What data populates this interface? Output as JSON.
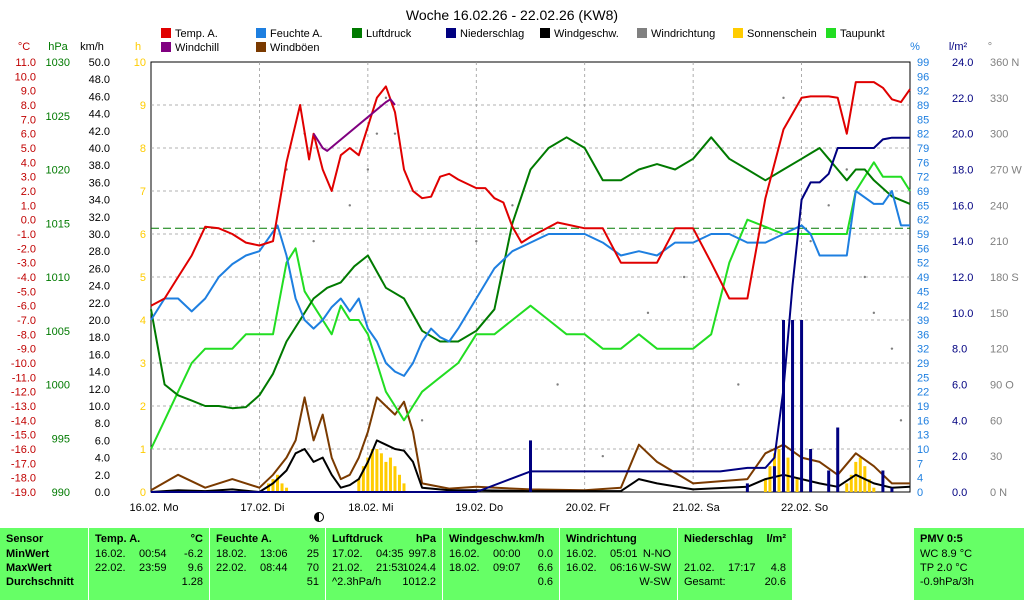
{
  "title": "Woche 16.02.26 - 22.02.26 (KW8)",
  "legend": [
    {
      "label": "Temp. A.",
      "color": "#e00000"
    },
    {
      "label": "Feuchte A.",
      "color": "#1e7fe0"
    },
    {
      "label": "Luftdruck",
      "color": "#007a00"
    },
    {
      "label": "Niederschlag",
      "color": "#000080"
    },
    {
      "label": "Windgeschw.",
      "color": "#000000"
    },
    {
      "label": "Windrichtung",
      "color": "#808080"
    },
    {
      "label": "Sonnenschein",
      "color": "#ffcc00"
    },
    {
      "label": "Taupunkt",
      "color": "#22dd22"
    },
    {
      "label": "Windchill",
      "color": "#800080"
    },
    {
      "label": "Windböen",
      "color": "#7a3a00"
    }
  ],
  "axes": {
    "temp": {
      "unit": "°C",
      "color": "#c00000",
      "ticks": [
        "11.0",
        "10.0",
        "9.0",
        "8.0",
        "7.0",
        "6.0",
        "5.0",
        "4.0",
        "3.0",
        "2.0",
        "1.0",
        "0.0",
        "-1.0",
        "-2.0",
        "-3.0",
        "-4.0",
        "-5.0",
        "-6.0",
        "-7.0",
        "-8.0",
        "-9.0",
        "-10.0",
        "-11.0",
        "-12.0",
        "-13.0",
        "-14.0",
        "-15.0",
        "-16.0",
        "-17.0",
        "-18.0",
        "-19.0"
      ]
    },
    "pressure": {
      "unit": "hPa",
      "color": "#007a00",
      "ticks": [
        "1030",
        "1025",
        "1020",
        "1015",
        "1010",
        "1005",
        "1000",
        "995",
        "990"
      ]
    },
    "wind": {
      "unit": "km/h",
      "color": "#000000",
      "ticks": [
        "50.0",
        "48.0",
        "46.0",
        "44.0",
        "42.0",
        "40.0",
        "38.0",
        "36.0",
        "34.0",
        "32.0",
        "30.0",
        "28.0",
        "26.0",
        "24.0",
        "22.0",
        "20.0",
        "18.0",
        "16.0",
        "14.0",
        "12.0",
        "10.0",
        "8.0",
        "6.0",
        "4.0",
        "2.0",
        "0.0"
      ]
    },
    "sun": {
      "unit": "h",
      "color": "#ffcc00",
      "ticks": [
        "10",
        "9",
        "8",
        "7",
        "6",
        "5",
        "4",
        "3",
        "2",
        "1",
        "0"
      ]
    },
    "humidity": {
      "unit": "%",
      "color": "#1e7fe0",
      "ticks": [
        "99",
        "96",
        "92",
        "89",
        "85",
        "82",
        "79",
        "76",
        "72",
        "69",
        "65",
        "62",
        "59",
        "56",
        "52",
        "49",
        "45",
        "42",
        "39",
        "36",
        "32",
        "29",
        "25",
        "22",
        "19",
        "16",
        "13",
        "10",
        "7",
        "4",
        "0"
      ]
    },
    "rain": {
      "unit": "l/m²",
      "color": "#000080",
      "ticks": [
        "24.0",
        "22.0",
        "20.0",
        "18.0",
        "16.0",
        "14.0",
        "12.0",
        "10.0",
        "8.0",
        "6.0",
        "4.0",
        "2.0",
        "0.0"
      ]
    },
    "direction": {
      "unit": "°",
      "color": "#808080",
      "ticks": [
        "360 N",
        "330",
        "300",
        "270 W",
        "240",
        "210",
        "180 S",
        "150",
        "120",
        "90 O",
        "60",
        "30",
        "0 N"
      ]
    }
  },
  "x_labels": [
    "16.02. Mo",
    "17.02. Di",
    "18.02. Mi",
    "19.02. Do",
    "20.02. Fr",
    "21.02. Sa",
    "22.02. So"
  ],
  "chart_data": {
    "type": "line",
    "title": "Woche 16.02.26 - 22.02.26 (KW8)",
    "x_days": [
      "16.02. Mo",
      "17.02. Di",
      "18.02. Mi",
      "19.02. Do",
      "20.02. Fr",
      "21.02. Sa",
      "22.02. So"
    ],
    "x_unit": "hours since 16.02. 00:00",
    "grid": true,
    "dew_reference_line": {
      "axis": "temp",
      "value": -0.6
    },
    "series": [
      {
        "name": "Temp. A.",
        "axis": "temp",
        "color": "#e00000",
        "x": [
          0,
          3,
          6,
          9,
          12,
          15,
          18,
          21,
          24,
          27,
          30,
          33,
          35,
          36,
          38,
          40,
          42,
          44,
          46,
          48,
          50,
          52,
          54,
          56,
          58,
          60,
          62,
          64,
          66,
          68,
          72,
          74,
          76,
          78,
          80,
          82,
          84,
          90,
          96,
          100,
          104,
          108,
          112,
          116,
          120,
          124,
          128,
          132,
          136,
          140,
          144,
          146,
          148,
          150,
          152,
          154,
          156,
          158,
          160,
          162,
          164,
          166,
          168
        ],
        "y": [
          -6.0,
          -5.5,
          -4.0,
          -2.5,
          -0.5,
          -0.6,
          -1.0,
          -1.6,
          -1.8,
          -1.5,
          4.0,
          8.0,
          4.2,
          6.0,
          3.5,
          2.0,
          4.5,
          5.0,
          4.5,
          6.5,
          8.5,
          9.3,
          7.5,
          3.5,
          2.0,
          1.5,
          1.6,
          3.0,
          3.2,
          2.8,
          2.2,
          2.2,
          1.5,
          1.2,
          -0.5,
          -1.6,
          -1.2,
          -0.2,
          -0.6,
          -0.6,
          -3.0,
          -3.0,
          -3.0,
          -0.6,
          -0.6,
          -3.0,
          -5.5,
          -5.5,
          1.5,
          6.3,
          8.5,
          8.6,
          8.6,
          8.6,
          8.5,
          6.0,
          9.6,
          9.6,
          9.6,
          9.2,
          8.4,
          8.2,
          9.1
        ]
      },
      {
        "name": "Feuchte A.",
        "axis": "humidity",
        "color": "#1e7fe0",
        "x": [
          0,
          3,
          6,
          9,
          12,
          15,
          18,
          21,
          24,
          28,
          30,
          32,
          34,
          36,
          38,
          40,
          42,
          44,
          46,
          48,
          50,
          52,
          54,
          56,
          58,
          60,
          62,
          64,
          66,
          68,
          72,
          76,
          80,
          84,
          88,
          92,
          96,
          100,
          104,
          108,
          112,
          116,
          120,
          124,
          128,
          132,
          136,
          140,
          144,
          146,
          148,
          150,
          152,
          154,
          156,
          160,
          162,
          164,
          166,
          168
        ],
        "y": [
          40,
          45,
          45,
          42,
          45,
          50,
          53,
          55,
          56,
          62,
          55,
          45,
          40,
          38,
          40,
          43,
          45,
          42,
          45,
          38,
          35,
          30,
          28,
          27,
          30,
          35,
          38,
          36,
          35,
          38,
          45,
          52,
          56,
          58,
          60,
          60,
          60,
          58,
          55,
          56,
          55,
          58,
          58,
          60,
          60,
          58,
          58,
          60,
          62,
          60,
          55,
          55,
          55,
          55,
          70,
          67,
          67,
          70,
          62,
          62
        ]
      },
      {
        "name": "Luftdruck",
        "axis": "pressure",
        "color": "#007a00",
        "x": [
          0,
          3,
          6,
          9,
          12,
          15,
          18,
          21,
          24,
          27,
          30,
          33,
          36,
          39,
          42,
          45,
          48,
          52,
          56,
          60,
          64,
          68,
          72,
          76,
          80,
          84,
          88,
          92,
          96,
          100,
          104,
          108,
          112,
          116,
          120,
          124,
          128,
          132,
          136,
          140,
          144,
          146,
          148,
          150,
          152,
          154,
          156,
          158,
          160,
          164,
          168
        ],
        "y": [
          1007,
          1000,
          999,
          998.5,
          998,
          998,
          997.8,
          997.9,
          999,
          1001,
          1004,
          1006,
          1008,
          1009,
          1009.5,
          1011,
          1012,
          1009,
          1008,
          1005,
          1004,
          1004,
          1005,
          1007,
          1015,
          1020,
          1022,
          1023,
          1022,
          1019,
          1019,
          1020,
          1020.5,
          1020,
          1021,
          1023,
          1021,
          1020,
          1019,
          1020,
          1021,
          1021.5,
          1022,
          1021,
          1020,
          1019,
          1020,
          1020,
          1019,
          1017.5,
          1016.8
        ]
      },
      {
        "name": "Taupunkt",
        "axis": "temp",
        "color": "#22dd22",
        "x": [
          0,
          3,
          6,
          9,
          12,
          15,
          18,
          21,
          24,
          27,
          30,
          32,
          34,
          36,
          38,
          40,
          42,
          44,
          46,
          48,
          50,
          52,
          54,
          56,
          58,
          60,
          64,
          68,
          72,
          76,
          80,
          84,
          88,
          92,
          96,
          100,
          104,
          108,
          112,
          116,
          120,
          124,
          128,
          132,
          136,
          140,
          144,
          146,
          148,
          150,
          152,
          154,
          156,
          158,
          160,
          162,
          164,
          166,
          168
        ],
        "y": [
          -16,
          -14,
          -12,
          -10,
          -9,
          -9,
          -9,
          -8,
          -8,
          -8,
          -3,
          -2,
          -5,
          -6,
          -7,
          -8,
          -6,
          -7,
          -7,
          -8,
          -10,
          -12,
          -13,
          -14,
          -13,
          -12,
          -11,
          -10,
          -8,
          -8,
          -7,
          -6,
          -7,
          -8,
          -8,
          -9,
          -9,
          -8,
          -9,
          -9,
          -9,
          -8,
          -3,
          0,
          -0.5,
          -1,
          -1,
          -1,
          -1,
          -1,
          -1,
          -1,
          2,
          3,
          4,
          3,
          3,
          3,
          2
        ]
      },
      {
        "name": "Niederschlag",
        "axis": "rain",
        "color": "#000080",
        "x": [
          0,
          24,
          36,
          48,
          60,
          72,
          84,
          96,
          108,
          120,
          126,
          132,
          136,
          138,
          140,
          142,
          144,
          146,
          148,
          150,
          152,
          154,
          156,
          158,
          160,
          162,
          164,
          166,
          168
        ],
        "y": [
          0,
          0,
          0,
          0,
          0,
          0,
          1.2,
          1.2,
          1.2,
          1.2,
          1.2,
          1.4,
          1.4,
          2.0,
          6.0,
          12.0,
          17.0,
          18.0,
          18.0,
          18.5,
          20.0,
          20.0,
          20.0,
          20.0,
          20.0,
          20.5,
          20.6,
          20.6,
          20.6
        ]
      },
      {
        "name": "Windgeschw.",
        "axis": "wind",
        "color": "#000000",
        "x": [
          0,
          6,
          12,
          18,
          24,
          27,
          30,
          32,
          34,
          36,
          38,
          40,
          42,
          44,
          46,
          48,
          50,
          52,
          54,
          56,
          58,
          60,
          66,
          72,
          84,
          96,
          104,
          108,
          112,
          120,
          132,
          136,
          140,
          144,
          148,
          152,
          156,
          160,
          164,
          168
        ],
        "y": [
          0,
          0.2,
          0.1,
          0.3,
          0,
          1.0,
          2.5,
          4.5,
          5.0,
          3.5,
          4.0,
          2.0,
          0.5,
          0.8,
          1.5,
          3.5,
          6.0,
          5.5,
          5.0,
          4.8,
          3.5,
          0.5,
          0.2,
          0.2,
          0.1,
          0.1,
          0.1,
          1.5,
          1.0,
          0.3,
          0.6,
          1.5,
          2.0,
          1.5,
          1.0,
          0.6,
          2.0,
          1.0,
          0.5,
          0.6
        ]
      },
      {
        "name": "Windböen",
        "axis": "wind",
        "color": "#7a3a00",
        "x": [
          0,
          6,
          12,
          18,
          24,
          27,
          30,
          32,
          34,
          36,
          38,
          40,
          42,
          44,
          46,
          48,
          50,
          52,
          54,
          56,
          58,
          60,
          66,
          72,
          84,
          96,
          104,
          108,
          112,
          120,
          132,
          136,
          140,
          144,
          148,
          152,
          156,
          160,
          164,
          168
        ],
        "y": [
          0.2,
          2.0,
          0.5,
          1.5,
          0.5,
          2.0,
          4.0,
          6.0,
          11.0,
          6.0,
          9.0,
          4.0,
          1.5,
          2.0,
          4.0,
          7.0,
          11.0,
          10.0,
          9.0,
          10.5,
          7.0,
          1.0,
          0.4,
          0.6,
          0.3,
          0.2,
          0.5,
          5.5,
          3.5,
          1.0,
          1.5,
          4.5,
          5.5,
          4.0,
          3.5,
          2.0,
          4.5,
          3.0,
          1.0,
          1.0
        ]
      },
      {
        "name": "Sonnenschein",
        "axis": "sun",
        "type": "bar",
        "color": "#ffcc00",
        "x": [
          26,
          27,
          28,
          29,
          30,
          46,
          47,
          48,
          49,
          50,
          51,
          52,
          53,
          54,
          55,
          56,
          84,
          136,
          137,
          138,
          139,
          140,
          141,
          142,
          143,
          144,
          154,
          155,
          156,
          157,
          158,
          159,
          160
        ],
        "y": [
          0.2,
          0.3,
          0.4,
          0.2,
          0.1,
          0.3,
          0.6,
          0.8,
          1.0,
          1.0,
          0.9,
          0.7,
          0.8,
          0.6,
          0.4,
          0.2,
          0.3,
          0.3,
          0.6,
          0.9,
          1.0,
          1.0,
          0.8,
          0.5,
          0.3,
          0.2,
          0.2,
          0.4,
          0.7,
          0.8,
          0.6,
          0.3,
          0.1
        ]
      },
      {
        "name": "Windrichtung",
        "axis": "direction",
        "type": "scatter",
        "color": "#808080",
        "x": [
          30,
          34,
          36,
          44,
          48,
          50,
          52,
          54,
          60,
          72,
          80,
          90,
          100,
          110,
          118,
          130,
          140,
          146,
          150,
          154,
          158,
          160,
          164,
          166
        ],
        "y": [
          270,
          300,
          210,
          240,
          270,
          300,
          330,
          300,
          60,
          210,
          240,
          90,
          30,
          150,
          180,
          90,
          330,
          210,
          240,
          270,
          180,
          150,
          120,
          60
        ]
      },
      {
        "name": "Windchill",
        "axis": "temp",
        "color": "#800080",
        "x": [
          36,
          37,
          38,
          39,
          52,
          53,
          54
        ],
        "y": [
          6.0,
          5.5,
          5.0,
          4.8,
          8.2,
          8.4,
          8.0
        ]
      }
    ]
  },
  "stats": {
    "columns": [
      {
        "header": "Sensor",
        "rows": [
          "MinWert",
          "MaxWert",
          "Durchschnitt"
        ]
      },
      {
        "header": "Temp. A.",
        "unit": "°C",
        "rows": [
          [
            "16.02.",
            "00:54",
            "-6.2"
          ],
          [
            "22.02.",
            "23:59",
            "9.6"
          ],
          [
            "",
            "",
            "1.28"
          ]
        ]
      },
      {
        "header": "Feuchte A.",
        "unit": "%",
        "rows": [
          [
            "18.02.",
            "13:06",
            "25"
          ],
          [
            "22.02.",
            "08:44",
            "70"
          ],
          [
            "",
            "",
            "51"
          ]
        ]
      },
      {
        "header": "Luftdruck",
        "unit": "hPa",
        "rows": [
          [
            "17.02.",
            "04:35",
            "997.8"
          ],
          [
            "21.02.",
            "21:53",
            "1024.4"
          ],
          [
            "^2.3hPa/h",
            "",
            "1012.2"
          ]
        ]
      },
      {
        "header": "Windgeschw.km/h",
        "unit": "",
        "rows": [
          [
            "16.02.",
            "00:00",
            "0.0"
          ],
          [
            "18.02.",
            "09:07",
            "6.6"
          ],
          [
            "",
            "",
            "0.6"
          ]
        ]
      },
      {
        "header": "Windrichtung",
        "unit": "",
        "rows": [
          [
            "16.02.",
            "05:01",
            "N-NO"
          ],
          [
            "16.02.",
            "06:16",
            "W-SW"
          ],
          [
            "",
            "",
            "W-SW"
          ]
        ]
      },
      {
        "header": "Niederschlag",
        "unit": "l/m²",
        "rows": [
          [
            "",
            "",
            ""
          ],
          [
            "21.02.",
            "17:17",
            "4.8"
          ],
          [
            "Gesamt:",
            "",
            "20.6"
          ]
        ]
      },
      {
        "header": "PMV 0:5",
        "unit": "",
        "rows": [
          "WC 8.9 °C",
          "TP 2.0 °C",
          "-0.9hPa/3h"
        ]
      }
    ]
  }
}
